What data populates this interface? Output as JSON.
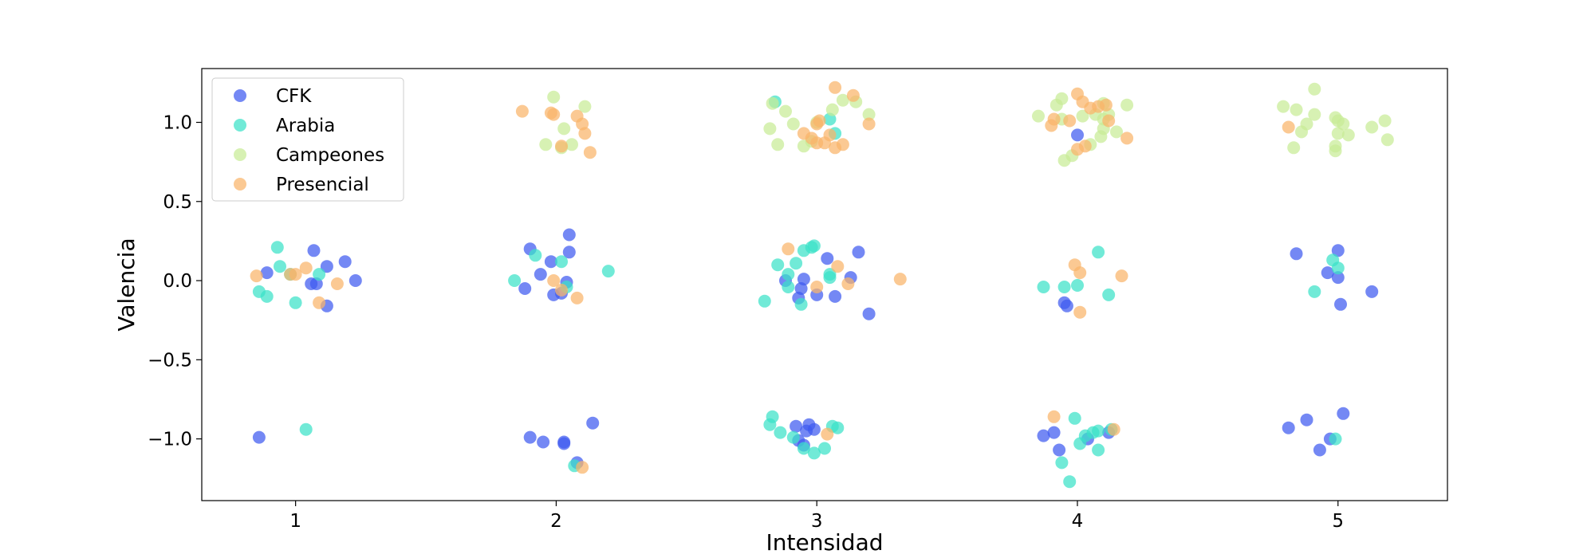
{
  "chart_data": {
    "type": "scatter",
    "title": "",
    "xlabel": "Intensidad",
    "ylabel": "Valencia",
    "xlim": [
      0.64,
      5.42
    ],
    "ylim": [
      -1.39,
      1.34
    ],
    "xticks": [
      1,
      2,
      3,
      4,
      5
    ],
    "xtick_labels": [
      "1",
      "2",
      "3",
      "4",
      "5"
    ],
    "yticks": [
      -1.0,
      -0.5,
      0.0,
      0.5,
      1.0
    ],
    "ytick_labels": [
      "−1.0",
      "−0.5",
      "0.0",
      "0.5",
      "1.0"
    ],
    "grid": false,
    "legend_position": "top-left",
    "series": [
      {
        "name": "CFK",
        "color": "#3e5af0",
        "points": [
          [
            0.86,
            -0.99
          ],
          [
            0.89,
            0.05
          ],
          [
            1.07,
            0.19
          ],
          [
            1.06,
            -0.02
          ],
          [
            1.08,
            -0.02
          ],
          [
            1.12,
            0.09
          ],
          [
            1.12,
            -0.16
          ],
          [
            1.19,
            0.12
          ],
          [
            1.23,
            0.0
          ],
          [
            1.9,
            0.2
          ],
          [
            1.88,
            -0.05
          ],
          [
            1.94,
            0.04
          ],
          [
            1.98,
            0.12
          ],
          [
            2.05,
            0.29
          ],
          [
            2.05,
            0.18
          ],
          [
            2.04,
            -0.01
          ],
          [
            1.99,
            -0.09
          ],
          [
            2.02,
            -0.08
          ],
          [
            1.9,
            -0.99
          ],
          [
            1.95,
            -1.02
          ],
          [
            2.03,
            -1.02
          ],
          [
            2.03,
            -1.03
          ],
          [
            2.08,
            -1.15
          ],
          [
            2.14,
            -0.9
          ],
          [
            3.04,
            0.14
          ],
          [
            3.16,
            0.18
          ],
          [
            2.94,
            -0.05
          ],
          [
            2.95,
            0.01
          ],
          [
            2.88,
            0.0
          ],
          [
            3.0,
            -0.09
          ],
          [
            3.07,
            -0.1
          ],
          [
            3.13,
            0.02
          ],
          [
            3.2,
            -0.21
          ],
          [
            2.93,
            -0.11
          ],
          [
            2.92,
            -0.92
          ],
          [
            2.93,
            -1.01
          ],
          [
            2.96,
            -0.95
          ],
          [
            2.97,
            -0.91
          ],
          [
            2.99,
            -0.94
          ],
          [
            2.95,
            -1.04
          ],
          [
            4.0,
            0.92
          ],
          [
            3.95,
            -0.14
          ],
          [
            3.96,
            -0.16
          ],
          [
            3.87,
            -0.98
          ],
          [
            3.91,
            -0.96
          ],
          [
            3.93,
            -1.07
          ],
          [
            4.04,
            -1.0
          ],
          [
            4.12,
            -0.96
          ],
          [
            4.84,
            0.17
          ],
          [
            5.0,
            0.19
          ],
          [
            4.96,
            0.05
          ],
          [
            5.0,
            0.02
          ],
          [
            5.01,
            -0.15
          ],
          [
            5.13,
            -0.07
          ],
          [
            4.81,
            -0.93
          ],
          [
            4.88,
            -0.88
          ],
          [
            4.93,
            -1.07
          ],
          [
            4.97,
            -1.0
          ],
          [
            5.02,
            -0.84
          ]
        ]
      },
      {
        "name": "Arabia",
        "color": "#3ae2c8",
        "points": [
          [
            0.93,
            0.21
          ],
          [
            0.94,
            0.09
          ],
          [
            0.86,
            -0.07
          ],
          [
            0.89,
            -0.1
          ],
          [
            0.98,
            0.04
          ],
          [
            1.0,
            -0.14
          ],
          [
            1.09,
            0.04
          ],
          [
            1.04,
            -0.94
          ],
          [
            1.84,
            0.0
          ],
          [
            1.92,
            0.16
          ],
          [
            2.02,
            0.12
          ],
          [
            2.04,
            -0.04
          ],
          [
            2.2,
            0.06
          ],
          [
            2.07,
            -1.17
          ],
          [
            2.84,
            1.13
          ],
          [
            3.07,
            0.93
          ],
          [
            3.05,
            1.02
          ],
          [
            2.85,
            0.1
          ],
          [
            2.89,
            0.04
          ],
          [
            2.92,
            0.11
          ],
          [
            2.95,
            0.19
          ],
          [
            2.98,
            0.21
          ],
          [
            2.99,
            0.22
          ],
          [
            3.05,
            0.04
          ],
          [
            3.05,
            0.02
          ],
          [
            2.89,
            -0.04
          ],
          [
            2.94,
            -0.15
          ],
          [
            2.8,
            -0.13
          ],
          [
            2.83,
            -0.86
          ],
          [
            2.82,
            -0.91
          ],
          [
            2.86,
            -0.96
          ],
          [
            2.91,
            -0.99
          ],
          [
            2.95,
            -1.06
          ],
          [
            2.99,
            -1.09
          ],
          [
            3.03,
            -1.06
          ],
          [
            3.06,
            -0.92
          ],
          [
            3.08,
            -0.93
          ],
          [
            3.87,
            -0.04
          ],
          [
            3.95,
            -0.04
          ],
          [
            4.0,
            -0.03
          ],
          [
            4.08,
            0.18
          ],
          [
            4.12,
            -0.09
          ],
          [
            3.94,
            -1.15
          ],
          [
            3.99,
            -0.87
          ],
          [
            4.01,
            -1.03
          ],
          [
            4.03,
            -0.98
          ],
          [
            4.06,
            -0.96
          ],
          [
            4.08,
            -0.95
          ],
          [
            4.08,
            -1.07
          ],
          [
            4.13,
            -0.94
          ],
          [
            3.97,
            -1.27
          ],
          [
            4.98,
            0.13
          ],
          [
            5.0,
            0.08
          ],
          [
            4.91,
            -0.07
          ],
          [
            4.99,
            -1.0
          ]
        ]
      },
      {
        "name": "Campeones",
        "color": "#c8ec96",
        "points": [
          [
            1.99,
            1.16
          ],
          [
            2.03,
            0.96
          ],
          [
            2.11,
            1.1
          ],
          [
            1.96,
            0.86
          ],
          [
            2.06,
            0.86
          ],
          [
            2.02,
            0.84
          ],
          [
            2.83,
            1.12
          ],
          [
            2.88,
            1.07
          ],
          [
            2.91,
            0.99
          ],
          [
            2.82,
            0.96
          ],
          [
            2.85,
            0.86
          ],
          [
            2.95,
            0.85
          ],
          [
            2.98,
            0.88
          ],
          [
            3.06,
            1.08
          ],
          [
            3.1,
            1.14
          ],
          [
            3.15,
            1.13
          ],
          [
            3.2,
            1.05
          ],
          [
            3.0,
            1.0
          ],
          [
            3.85,
            1.04
          ],
          [
            3.92,
            1.11
          ],
          [
            3.94,
            1.15
          ],
          [
            3.94,
            1.02
          ],
          [
            3.95,
            0.76
          ],
          [
            3.98,
            0.79
          ],
          [
            4.02,
            1.04
          ],
          [
            4.05,
            0.86
          ],
          [
            4.07,
            1.05
          ],
          [
            4.1,
            1.12
          ],
          [
            4.1,
            1.02
          ],
          [
            4.12,
            1.05
          ],
          [
            4.1,
            0.96
          ],
          [
            4.09,
            0.91
          ],
          [
            4.15,
            0.94
          ],
          [
            4.19,
            1.11
          ],
          [
            4.79,
            1.1
          ],
          [
            4.84,
            1.08
          ],
          [
            4.86,
            0.94
          ],
          [
            4.83,
            0.84
          ],
          [
            4.88,
            0.99
          ],
          [
            4.91,
            1.21
          ],
          [
            4.91,
            1.05
          ],
          [
            4.99,
            1.03
          ],
          [
            5.0,
            1.01
          ],
          [
            5.0,
            0.93
          ],
          [
            5.02,
            0.99
          ],
          [
            5.04,
            0.92
          ],
          [
            4.99,
            0.85
          ],
          [
            4.99,
            0.82
          ],
          [
            5.13,
            0.97
          ],
          [
            5.18,
            1.01
          ],
          [
            5.19,
            0.89
          ]
        ]
      },
      {
        "name": "Presencial",
        "color": "#f9b469",
        "points": [
          [
            0.85,
            0.03
          ],
          [
            0.98,
            0.04
          ],
          [
            1.0,
            0.04
          ],
          [
            1.04,
            0.08
          ],
          [
            1.09,
            -0.14
          ],
          [
            1.16,
            -0.02
          ],
          [
            1.87,
            1.07
          ],
          [
            1.98,
            1.06
          ],
          [
            1.99,
            1.05
          ],
          [
            2.08,
            1.04
          ],
          [
            2.1,
            0.99
          ],
          [
            2.11,
            0.93
          ],
          [
            2.13,
            0.81
          ],
          [
            2.02,
            0.85
          ],
          [
            1.99,
            0.0
          ],
          [
            2.02,
            -0.06
          ],
          [
            2.08,
            -0.11
          ],
          [
            2.1,
            -1.18
          ],
          [
            3.07,
            1.22
          ],
          [
            3.14,
            1.17
          ],
          [
            2.95,
            0.93
          ],
          [
            2.98,
            0.9
          ],
          [
            3.0,
            0.87
          ],
          [
            3.0,
            0.99
          ],
          [
            3.01,
            1.01
          ],
          [
            3.03,
            0.87
          ],
          [
            3.05,
            0.92
          ],
          [
            3.07,
            0.84
          ],
          [
            3.2,
            0.99
          ],
          [
            3.1,
            0.86
          ],
          [
            2.89,
            0.2
          ],
          [
            3.08,
            0.09
          ],
          [
            3.12,
            -0.02
          ],
          [
            3.0,
            -0.04
          ],
          [
            3.32,
            0.01
          ],
          [
            3.04,
            -0.97
          ],
          [
            3.9,
            0.98
          ],
          [
            3.91,
            1.02
          ],
          [
            3.97,
            1.01
          ],
          [
            4.0,
            1.18
          ],
          [
            4.02,
            1.13
          ],
          [
            4.0,
            0.83
          ],
          [
            4.03,
            0.85
          ],
          [
            4.08,
            1.1
          ],
          [
            4.11,
            1.11
          ],
          [
            4.12,
            1.01
          ],
          [
            4.19,
            0.9
          ],
          [
            4.05,
            1.09
          ],
          [
            3.99,
            0.1
          ],
          [
            4.01,
            0.05
          ],
          [
            4.01,
            -0.2
          ],
          [
            4.17,
            0.03
          ],
          [
            3.91,
            -0.86
          ],
          [
            4.14,
            -0.94
          ],
          [
            4.81,
            0.97
          ]
        ]
      }
    ]
  }
}
